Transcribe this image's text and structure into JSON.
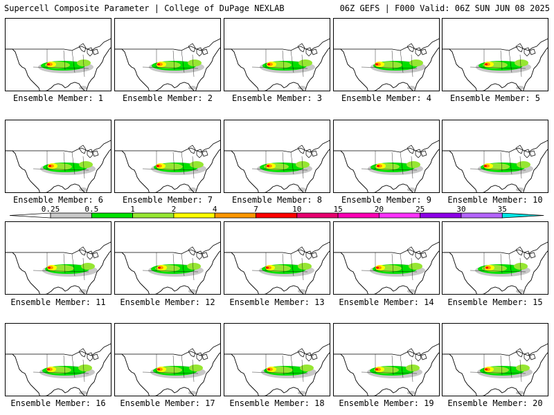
{
  "header": {
    "left": "Supercell Composite Parameter | College of DuPage NEXLAB",
    "right": "06Z GEFS | F000 Valid: 06Z SUN JUN 08 2025"
  },
  "caption_prefix": "Ensemble Member:",
  "members": [
    {
      "label": "Ensemble Member: 1"
    },
    {
      "label": "Ensemble Member: 2"
    },
    {
      "label": "Ensemble Member: 3"
    },
    {
      "label": "Ensemble Member: 4"
    },
    {
      "label": "Ensemble Member: 5"
    },
    {
      "label": "Ensemble Member: 6"
    },
    {
      "label": "Ensemble Member: 7"
    },
    {
      "label": "Ensemble Member: 8"
    },
    {
      "label": "Ensemble Member: 9"
    },
    {
      "label": "Ensemble Member: 10"
    },
    {
      "label": "Ensemble Member: 11"
    },
    {
      "label": "Ensemble Member: 12"
    },
    {
      "label": "Ensemble Member: 13"
    },
    {
      "label": "Ensemble Member: 14"
    },
    {
      "label": "Ensemble Member: 15"
    },
    {
      "label": "Ensemble Member: 16"
    },
    {
      "label": "Ensemble Member: 17"
    },
    {
      "label": "Ensemble Member: 18"
    },
    {
      "label": "Ensemble Member: 19"
    },
    {
      "label": "Ensemble Member: 20"
    }
  ],
  "colorbar": {
    "ticks": [
      "0.25",
      "0.5",
      "1",
      "2",
      "4",
      "7",
      "10",
      "15",
      "20",
      "25",
      "30",
      "35"
    ],
    "colors": [
      "#c8c8c8",
      "#00e000",
      "#96e632",
      "#ffff00",
      "#ff9600",
      "#ff0000",
      "#e6006e",
      "#ff00b4",
      "#ff32ff",
      "#8c00e6",
      "#b464ff",
      "#00e6e6"
    ]
  }
}
